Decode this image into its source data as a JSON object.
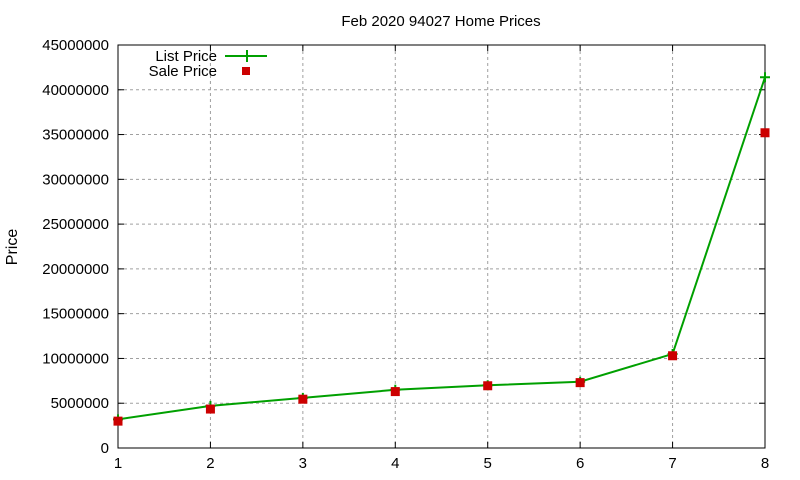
{
  "chart_data": {
    "type": "line",
    "title": "Feb 2020 94027 Home Prices",
    "xlabel": "",
    "ylabel": "Price",
    "x": [
      1,
      2,
      3,
      4,
      5,
      6,
      7,
      8
    ],
    "xlim": [
      1,
      8
    ],
    "ylim": [
      0,
      45000000
    ],
    "xticks": [
      "1",
      "2",
      "3",
      "4",
      "5",
      "6",
      "7",
      "8"
    ],
    "yticks": [
      "0",
      "5000000",
      "10000000",
      "15000000",
      "20000000",
      "25000000",
      "30000000",
      "35000000",
      "40000000",
      "45000000"
    ],
    "grid": true,
    "legend_position": "top-left",
    "series": [
      {
        "name": "List Price",
        "style": "lines+points",
        "marker": "plus",
        "color": "#00a000",
        "values": [
          3200000,
          4700000,
          5600000,
          6500000,
          7000000,
          7400000,
          10500000,
          41400000
        ]
      },
      {
        "name": "Sale Price",
        "style": "points",
        "marker": "square",
        "color": "#cc0000",
        "values": [
          3000000,
          4350000,
          5450000,
          6300000,
          6950000,
          7300000,
          10300000,
          35200000
        ]
      }
    ]
  },
  "legend": {
    "items": [
      {
        "label": "List Price"
      },
      {
        "label": "Sale Price"
      }
    ]
  }
}
